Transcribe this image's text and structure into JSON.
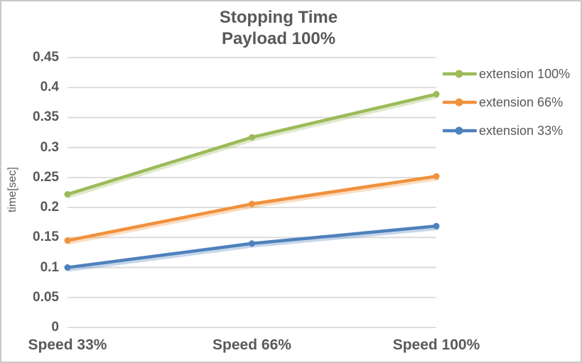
{
  "chart_data": {
    "type": "line",
    "title": "Stopping Time",
    "subtitle": "Payload 100%",
    "ylabel": "time[sec]",
    "xlabel": "",
    "categories": [
      "Speed 33%",
      "Speed 66%",
      "Speed 100%"
    ],
    "series": [
      {
        "name": "extension 100%",
        "color": "#9BBB59",
        "values": [
          0.222,
          0.317,
          0.389
        ]
      },
      {
        "name": "extension 66%",
        "color": "#F0913D",
        "values": [
          0.145,
          0.206,
          0.252
        ]
      },
      {
        "name": "extension 33%",
        "color": "#4E81BD",
        "values": [
          0.1,
          0.14,
          0.169
        ]
      }
    ],
    "ylim": [
      0,
      0.45
    ],
    "ytick_step": 0.05,
    "ytick_labels": [
      "0",
      "0.05",
      "0.1",
      "0.15",
      "0.2",
      "0.25",
      "0.3",
      "0.35",
      "0.4",
      "0.45"
    ],
    "grid": "horizontal",
    "legend_position": "right",
    "marker": "circle"
  },
  "colors": {
    "text": "#595959",
    "gridline": "#D9D9D9",
    "frame_border": "#C9C9C9",
    "background": "#FFFFFF"
  }
}
